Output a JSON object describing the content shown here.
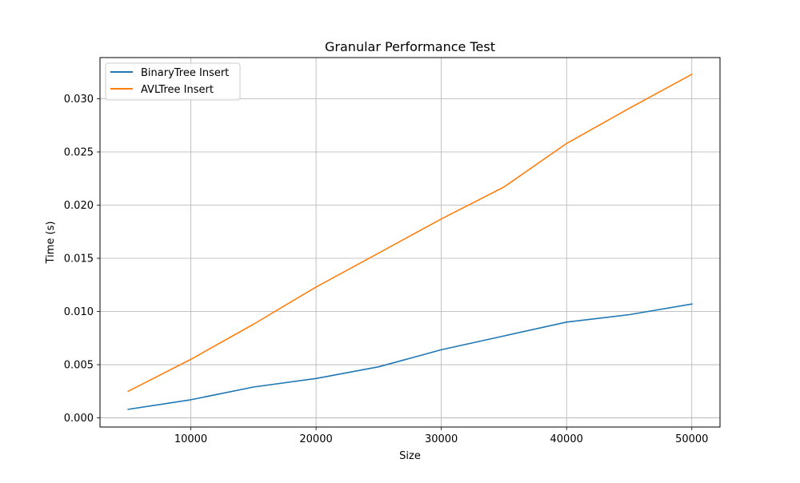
{
  "chart_data": {
    "type": "line",
    "title": "Granular Performance Test",
    "xlabel": "Size",
    "ylabel": "Time (s)",
    "xlim": [
      2750,
      52250
    ],
    "ylim": [
      -0.00086,
      0.03387
    ],
    "x": [
      5000,
      10000,
      15000,
      20000,
      25000,
      30000,
      35000,
      40000,
      45000,
      50000
    ],
    "xticks": [
      10000,
      20000,
      30000,
      40000,
      50000
    ],
    "xtick_labels": [
      "10000",
      "20000",
      "30000",
      "40000",
      "50000"
    ],
    "yticks": [
      0.0,
      0.005,
      0.01,
      0.015,
      0.02,
      0.025,
      0.03
    ],
    "ytick_labels": [
      "0.000",
      "0.005",
      "0.010",
      "0.015",
      "0.020",
      "0.025",
      "0.030"
    ],
    "grid": true,
    "legend_position": "top-left",
    "series": [
      {
        "name": "BinaryTree Insert",
        "color": "#1f77b4",
        "values": [
          0.0008,
          0.0017,
          0.0029,
          0.0037,
          0.0048,
          0.0064,
          0.0077,
          0.009,
          0.0097,
          0.0107
        ]
      },
      {
        "name": "AVLTree Insert",
        "color": "#ff7f0e",
        "values": [
          0.0025,
          0.0055,
          0.0088,
          0.0123,
          0.0155,
          0.0187,
          0.0217,
          0.0258,
          0.0291,
          0.0323
        ]
      }
    ]
  }
}
